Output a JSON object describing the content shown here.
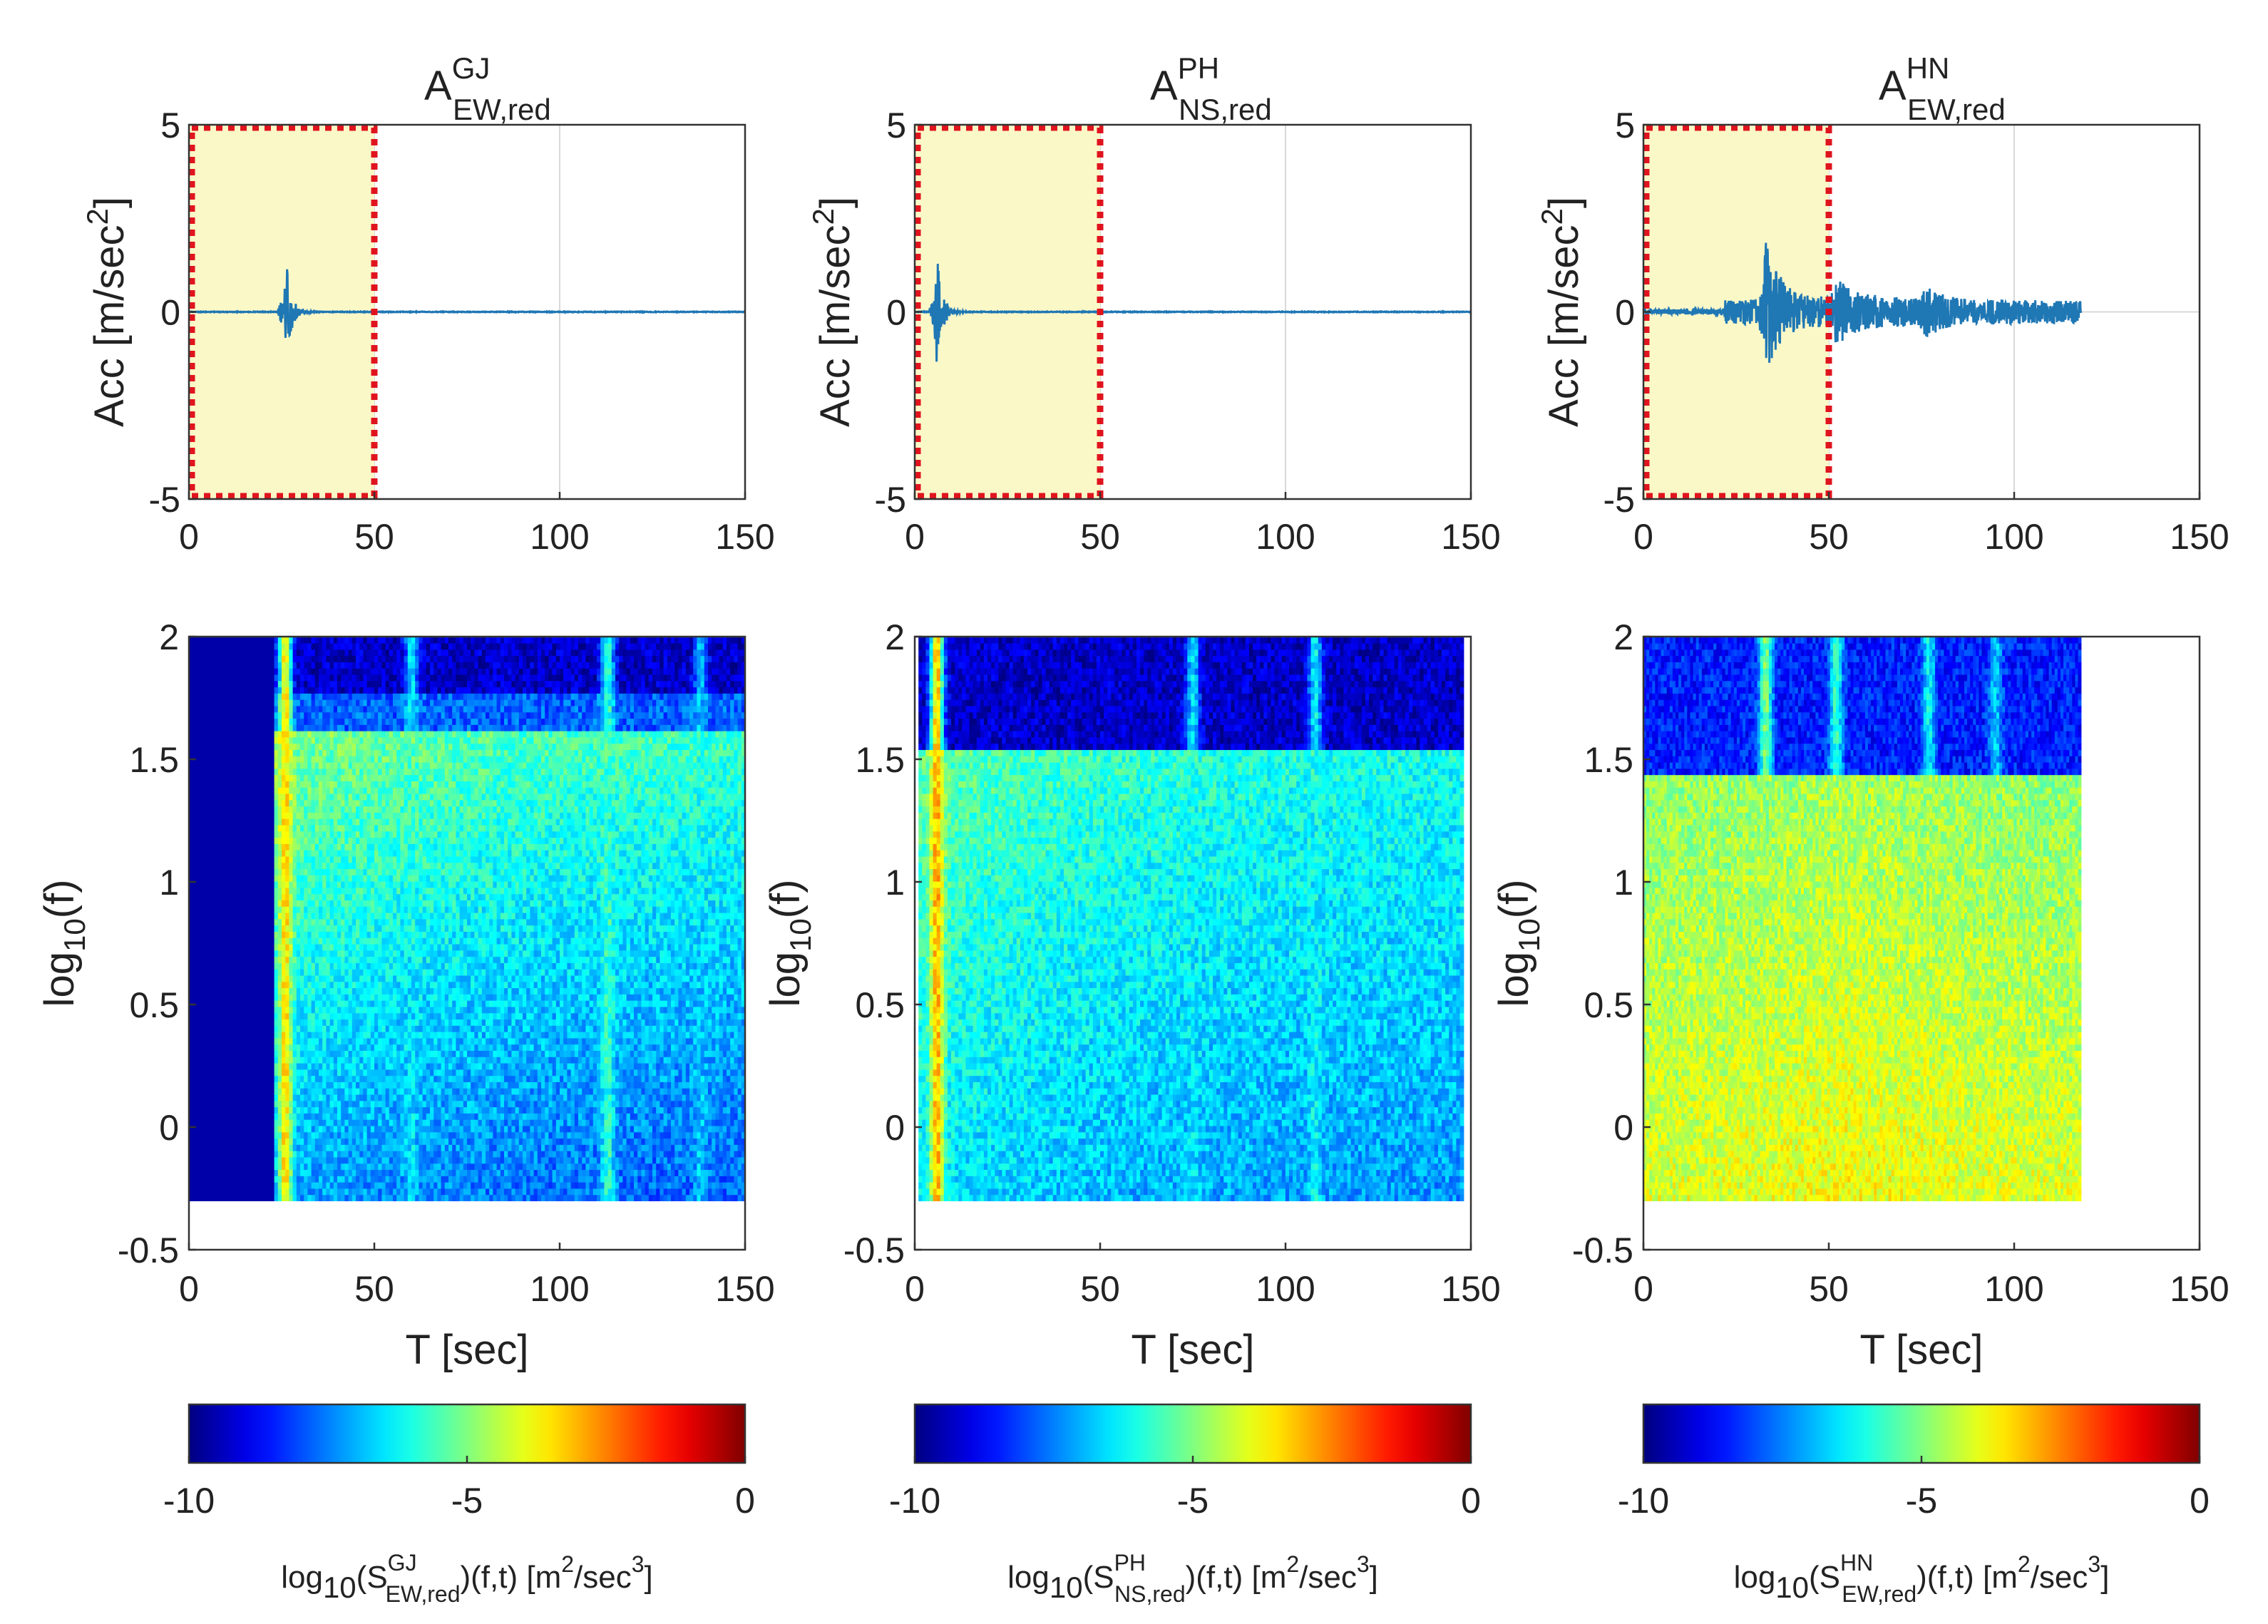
{
  "colors": {
    "signal": "#1f77b4",
    "window_fill": "#fbf8c8",
    "window_border": "#e0141e",
    "grid": "#d9d9d9",
    "colormap": "jet"
  },
  "chart_data": [
    {
      "type": "line",
      "panel": "top-left",
      "title": {
        "base": "A",
        "sup": "GJ",
        "sub": "EW,red"
      },
      "ylabel": {
        "main": "Acc [m/sec",
        "sup": "2",
        "end": "]"
      },
      "xlim": [
        0,
        150
      ],
      "ylim": [
        -5,
        5
      ],
      "xticks": [
        "0",
        "50",
        "100",
        "150"
      ],
      "yticks": [
        "5",
        "0",
        "-5"
      ],
      "grid": true,
      "highlight_window": [
        0,
        50
      ],
      "series": [
        {
          "t_start": 0,
          "t_end": 150,
          "peaks": [
            {
              "t": 26,
              "amp": 1.0
            }
          ],
          "noise": 0.02
        }
      ]
    },
    {
      "type": "line",
      "panel": "top-middle",
      "title": {
        "base": "A",
        "sup": "PH",
        "sub": "NS,red"
      },
      "ylabel": {
        "main": "Acc [m/sec",
        "sup": "2",
        "end": "]"
      },
      "xlim": [
        0,
        150
      ],
      "ylim": [
        -5,
        5
      ],
      "xticks": [
        "0",
        "50",
        "100",
        "150"
      ],
      "yticks": [
        "5",
        "0",
        "-5"
      ],
      "grid": true,
      "highlight_window": [
        0,
        50
      ],
      "series": [
        {
          "t_start": 0,
          "t_end": 150,
          "peaks": [
            {
              "t": 6,
              "amp": 1.0
            }
          ],
          "noise": 0.02
        }
      ]
    },
    {
      "type": "line",
      "panel": "top-right",
      "title": {
        "base": "A",
        "sup": "HN",
        "sub": "EW,red"
      },
      "ylabel": {
        "main": "Acc [m/sec",
        "sup": "2",
        "end": "]"
      },
      "xlim": [
        0,
        150
      ],
      "ylim": [
        -5,
        5
      ],
      "xticks": [
        "0",
        "50",
        "100",
        "150"
      ],
      "yticks": [
        "5",
        "0",
        "-5"
      ],
      "grid": true,
      "highlight_window": [
        0,
        50
      ],
      "series": [
        {
          "t_start": 0,
          "t_end": 118,
          "peaks": [
            {
              "t": 33,
              "amp": 1.0
            },
            {
              "t": 52,
              "amp": 0.35
            },
            {
              "t": 76,
              "amp": 0.25
            }
          ],
          "noise": 0.15
        }
      ]
    },
    {
      "type": "heatmap",
      "panel": "bottom-left",
      "xlabel": "T [sec]",
      "ylabel": {
        "main": "log",
        "sub": "10",
        "end": "(f)"
      },
      "xlim": [
        0,
        150
      ],
      "ylim": [
        -0.5,
        2
      ],
      "xticks": [
        "0",
        "50",
        "100",
        "150"
      ],
      "yticks": [
        "2",
        "1.5",
        "1",
        "0.5",
        "0",
        "-0.5"
      ],
      "z_range": [
        -10,
        0
      ],
      "data_region": {
        "t": [
          0,
          150
        ],
        "f": [
          -0.3,
          2
        ]
      },
      "signal_start": 23,
      "onset": 26,
      "level_low": -8.0,
      "level_high": -5.8,
      "background": -9.6,
      "hf_cutoff": 1.65,
      "streaks": [
        {
          "t": 26,
          "level": -3.5
        },
        {
          "t": 60,
          "level": -6.5
        },
        {
          "t": 113,
          "level": -5.8
        },
        {
          "t": 138,
          "level": -6.8
        }
      ],
      "hf_band": {
        "f": [
          1.62,
          1.78
        ],
        "level": -7.8
      }
    },
    {
      "type": "heatmap",
      "panel": "bottom-middle",
      "xlabel": "T [sec]",
      "ylabel": {
        "main": "log",
        "sub": "10",
        "end": "(f)"
      },
      "xlim": [
        0,
        150
      ],
      "ylim": [
        -0.5,
        2
      ],
      "xticks": [
        "0",
        "50",
        "100",
        "150"
      ],
      "yticks": [
        "2",
        "1.5",
        "1",
        "0.5",
        "0",
        "-0.5"
      ],
      "z_range": [
        -10,
        0
      ],
      "data_region": {
        "t": [
          1,
          148
        ],
        "f": [
          -0.3,
          2
        ]
      },
      "signal_start": 1,
      "onset": 6,
      "level_low": -7.4,
      "level_high": -6.2,
      "background": -9.6,
      "hf_cutoff": 1.55,
      "streaks": [
        {
          "t": 6,
          "level": -3.0
        },
        {
          "t": 75,
          "level": -6.5
        },
        {
          "t": 108,
          "level": -6.3
        }
      ],
      "hf_band": null
    },
    {
      "type": "heatmap",
      "panel": "bottom-right",
      "xlabel": "T [sec]",
      "ylabel": {
        "main": "log",
        "sub": "10",
        "end": "(f)"
      },
      "xlim": [
        0,
        150
      ],
      "ylim": [
        -0.5,
        2
      ],
      "xticks": [
        "0",
        "50",
        "100",
        "150"
      ],
      "yticks": [
        "2",
        "1.5",
        "1",
        "0.5",
        "0",
        "-0.5"
      ],
      "z_range": [
        -10,
        0
      ],
      "data_region": {
        "t": [
          0,
          118
        ],
        "f": [
          -0.3,
          2
        ]
      },
      "signal_start": 0,
      "onset": 33,
      "level_low": -4.2,
      "level_high": -5.0,
      "background": -8.8,
      "hf_cutoff": 1.45,
      "streaks": [
        {
          "t": 33,
          "level": -5.0
        },
        {
          "t": 52,
          "level": -5.8
        },
        {
          "t": 77,
          "level": -6.3
        },
        {
          "t": 95,
          "level": -6.8
        }
      ],
      "hf_band": null
    },
    {
      "type": "colorbar",
      "panel": "colorbar-left",
      "range": [
        -10,
        0
      ],
      "ticks": [
        "-10",
        "-5",
        "0"
      ],
      "label": {
        "pre": "log",
        "pre_sub": "10",
        "mid": "(S",
        "sup": "GJ",
        "sub": "EW,red",
        "post": ")(f,t) [m",
        "post_sup": "2",
        "post2": "/sec",
        "post2_sup": "3",
        "end": "]"
      }
    },
    {
      "type": "colorbar",
      "panel": "colorbar-middle",
      "range": [
        -10,
        0
      ],
      "ticks": [
        "-10",
        "-5",
        "0"
      ],
      "label": {
        "pre": "log",
        "pre_sub": "10",
        "mid": "(S",
        "sup": "PH",
        "sub": "NS,red",
        "post": ")(f,t) [m",
        "post_sup": "2",
        "post2": "/sec",
        "post2_sup": "3",
        "end": "]"
      }
    },
    {
      "type": "colorbar",
      "panel": "colorbar-right",
      "range": [
        -10,
        0
      ],
      "ticks": [
        "-10",
        "-5",
        "0"
      ],
      "label": {
        "pre": "log",
        "pre_sub": "10",
        "mid": "(S",
        "sup": "HN",
        "sub": "EW,red",
        "post": ")(f,t) [m",
        "post_sup": "2",
        "post2": "/sec",
        "post2_sup": "3",
        "end": "]"
      }
    }
  ]
}
